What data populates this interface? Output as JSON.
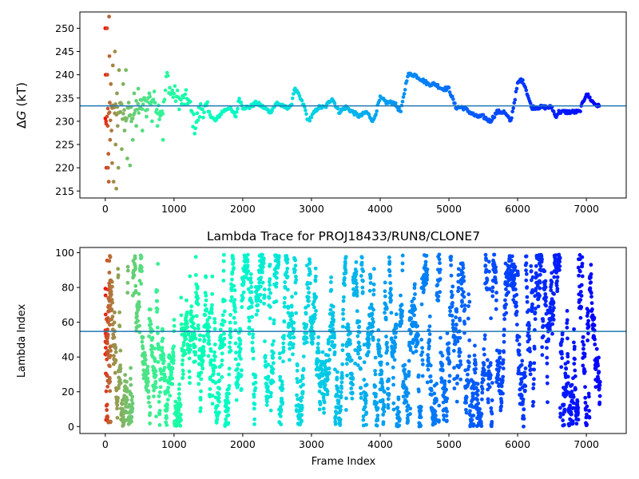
{
  "chart_data": [
    {
      "type": "scatter",
      "title": "",
      "xlabel": "",
      "ylabel": "ΔG (kT)",
      "ylabel_math_symbol": "Δ",
      "ylabel_math_var": "G",
      "ylabel_unit": "(kT)",
      "xlim": [
        -370,
        7580
      ],
      "ylim": [
        213.5,
        253.5
      ],
      "xticks": [
        0,
        1000,
        2000,
        3000,
        4000,
        5000,
        6000,
        7000
      ],
      "yticks": [
        215,
        220,
        225,
        230,
        235,
        240,
        245,
        250
      ],
      "colormap": "rainbow",
      "hline": 233.3,
      "hline_color": "#1f77b4",
      "grid": false,
      "series": [
        {
          "x": [
            0,
            100,
            200,
            300,
            400,
            500,
            600,
            700,
            800,
            850,
            900,
            950,
            1000,
            1100,
            1200,
            1300,
            1350,
            1400,
            1500,
            1600,
            1700,
            1800,
            1900,
            1950,
            2000,
            2100,
            2200,
            2300,
            2400,
            2500,
            2600,
            2700,
            2750,
            2800,
            2900,
            2950,
            3000,
            3100,
            3200,
            3300,
            3400,
            3500,
            3600,
            3700,
            3800,
            3850,
            3900,
            4000,
            4100,
            4200,
            4250,
            4300,
            4400,
            4500,
            4600,
            4700,
            4800,
            4900,
            5000,
            5100,
            5200,
            5300,
            5400,
            5500,
            5600,
            5700,
            5800,
            5900,
            6000,
            6050,
            6100,
            6200,
            6300,
            6400,
            6500,
            6550,
            6600,
            6700,
            6800,
            6900,
            7000,
            7100,
            7200
          ],
          "y": [
            230,
            232,
            233,
            231,
            232,
            233,
            234,
            235,
            232,
            233,
            240,
            236,
            236,
            234,
            235,
            229,
            231,
            233,
            232,
            230,
            232,
            233,
            231,
            235,
            233,
            233,
            234,
            233,
            232,
            234,
            233,
            233,
            237,
            236,
            233,
            230,
            231,
            233,
            233,
            235,
            232,
            233,
            232,
            231,
            232,
            231,
            230,
            235,
            234,
            234,
            233,
            232,
            240,
            240,
            239,
            238,
            238,
            237,
            237,
            233,
            233,
            232,
            231,
            231,
            230,
            232,
            232,
            230,
            238,
            239,
            238,
            233,
            233,
            233,
            233,
            231,
            232,
            232,
            232,
            232,
            236,
            234,
            233
          ],
          "scatter": [
            {
              "x": 0,
              "y": 250
            },
            {
              "x": 5,
              "y": 240
            },
            {
              "x": 10,
              "y": 230
            },
            {
              "x": 15,
              "y": 220
            },
            {
              "x": 25,
              "y": 250
            },
            {
              "x": 30,
              "y": 240
            },
            {
              "x": 35,
              "y": 229
            },
            {
              "x": 40,
              "y": 220
            },
            {
              "x": 45,
              "y": 223
            },
            {
              "x": 50,
              "y": 217
            },
            {
              "x": 55,
              "y": 252.5
            },
            {
              "x": 60,
              "y": 244
            },
            {
              "x": 65,
              "y": 234
            },
            {
              "x": 70,
              "y": 226
            },
            {
              "x": 80,
              "y": 238
            },
            {
              "x": 90,
              "y": 228
            },
            {
              "x": 100,
              "y": 221
            },
            {
              "x": 110,
              "y": 242
            },
            {
              "x": 120,
              "y": 217
            },
            {
              "x": 130,
              "y": 233
            },
            {
              "x": 140,
              "y": 245
            },
            {
              "x": 150,
              "y": 225
            },
            {
              "x": 160,
              "y": 215.5
            },
            {
              "x": 170,
              "y": 236
            },
            {
              "x": 180,
              "y": 229
            },
            {
              "x": 190,
              "y": 220
            },
            {
              "x": 200,
              "y": 241
            },
            {
              "x": 220,
              "y": 232
            },
            {
              "x": 240,
              "y": 224
            },
            {
              "x": 260,
              "y": 238
            },
            {
              "x": 280,
              "y": 228
            },
            {
              "x": 300,
              "y": 241
            },
            {
              "x": 320,
              "y": 222
            },
            {
              "x": 340,
              "y": 234
            },
            {
              "x": 360,
              "y": 220.5
            },
            {
              "x": 380,
              "y": 230
            },
            {
              "x": 400,
              "y": 226
            },
            {
              "x": 420,
              "y": 236
            },
            {
              "x": 450,
              "y": 229
            },
            {
              "x": 480,
              "y": 237
            },
            {
              "x": 510,
              "y": 233
            },
            {
              "x": 540,
              "y": 228
            },
            {
              "x": 570,
              "y": 235
            },
            {
              "x": 600,
              "y": 231
            },
            {
              "x": 640,
              "y": 236
            },
            {
              "x": 680,
              "y": 230
            },
            {
              "x": 720,
              "y": 234
            },
            {
              "x": 760,
              "y": 229
            },
            {
              "x": 800,
              "y": 232
            },
            {
              "x": 840,
              "y": 226
            }
          ]
        }
      ]
    },
    {
      "type": "scatter",
      "title": "Lambda Trace for PROJ18433/RUN8/CLONE7",
      "xlabel": "Frame Index",
      "ylabel": "Lambda Index",
      "xlim": [
        -370,
        7580
      ],
      "ylim": [
        -4,
        103
      ],
      "xticks": [
        0,
        1000,
        2000,
        3000,
        4000,
        5000,
        6000,
        7000
      ],
      "yticks": [
        0,
        20,
        40,
        60,
        80,
        100
      ],
      "colormap": "rainbow",
      "hline": 54.7,
      "hline_color": "#1f77b4",
      "grid": false,
      "series": [
        {
          "x_range": [
            0,
            7200
          ],
          "y_range": [
            0,
            99
          ],
          "n_points": 7200,
          "color_by": "frame index (red at start, violet at end)",
          "sparse_columns": [
            4250,
            4300,
            4850,
            4900,
            6050,
            6950
          ]
        }
      ]
    }
  ]
}
